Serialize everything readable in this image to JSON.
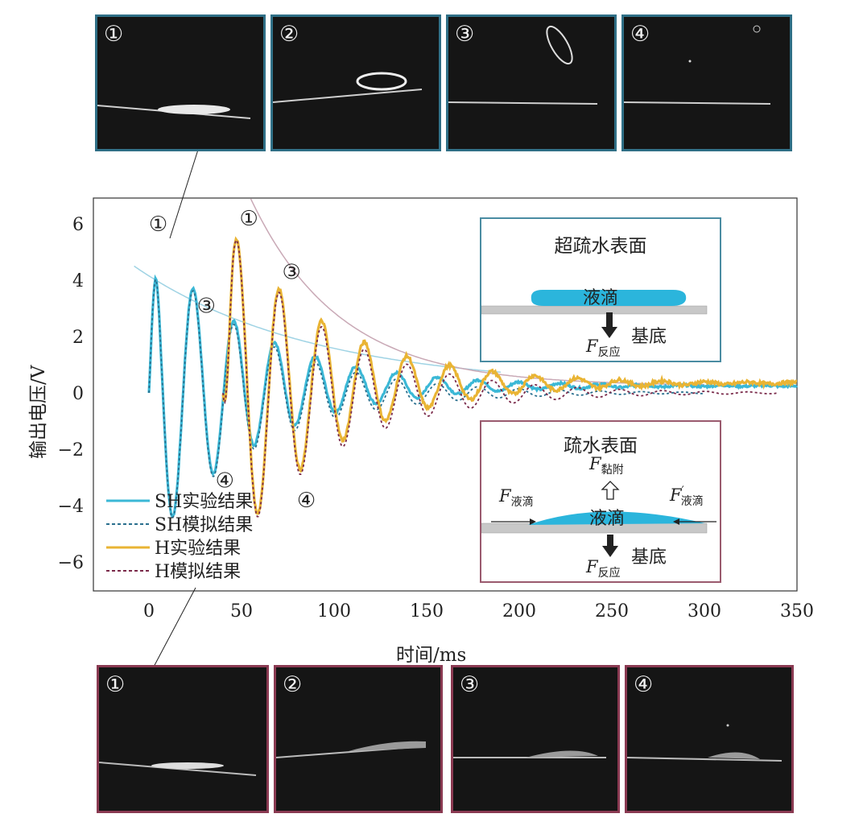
{
  "top_photos": [
    {
      "label": "①"
    },
    {
      "label": "②"
    },
    {
      "label": "③"
    },
    {
      "label": "④"
    }
  ],
  "bottom_photos": [
    {
      "label": "①"
    },
    {
      "label": "②"
    },
    {
      "label": "③"
    },
    {
      "label": "④"
    }
  ],
  "colors": {
    "sh_exp": "#3bb8d6",
    "sh_sim": "#2a6f8e",
    "h_exp": "#e9b434",
    "h_sim": "#7a2a4a",
    "envelope": "#c9a9b6",
    "sh_box": "#4a8ca2",
    "h_box": "#9a5a6e",
    "droplet": "#2bb5dc"
  },
  "chart_data": {
    "type": "line",
    "xlabel": "时间/ms",
    "ylabel": "输出电压/V",
    "xlim": [
      -30,
      350
    ],
    "ylim": [
      -7,
      7
    ],
    "x_ticks": [
      "0",
      "50",
      "100",
      "150",
      "200",
      "250",
      "300",
      "350"
    ],
    "y_ticks": [
      "6",
      "4",
      "2",
      "0",
      "−2",
      "−4",
      "−6"
    ],
    "legend": [
      "SH实验结果",
      "SH模拟结果",
      "H实验结果",
      "H模拟结果"
    ],
    "series": [
      {
        "name": "SH实验结果",
        "model": {
          "t0": 0,
          "t1": 350,
          "amp": 5.6,
          "tau": 55,
          "period": 22,
          "phase": 2,
          "offset": 0.25,
          "floor": 0.25,
          "noise": 0.08
        }
      },
      {
        "name": "SH模拟结果",
        "model": {
          "t0": 0,
          "t1": 300,
          "amp": 5.6,
          "tau": 55,
          "period": 22,
          "phase": 2,
          "offset": 0,
          "floor": 0,
          "noise": 0
        }
      },
      {
        "name": "H实验结果",
        "model": {
          "t0": 40,
          "t1": 350,
          "amp": 6.2,
          "tau": 55,
          "period": 23,
          "phase": 47.5,
          "offset": 0.35,
          "floor": 0.3,
          "noise": 0.12
        }
      },
      {
        "name": "H模拟结果",
        "model": {
          "t0": 40,
          "t1": 340,
          "amp": 6.2,
          "tau": 55,
          "period": 23,
          "phase": 47.5,
          "offset": 0,
          "floor": 0,
          "noise": 0
        }
      }
    ],
    "envelopes": [
      {
        "name": "SH",
        "model": {
          "t0": -8,
          "t1": 190,
          "a": 4.3,
          "tau": 95,
          "c": 0.2
        }
      },
      {
        "name": "H",
        "model": {
          "t0": 33,
          "t1": 300,
          "a": 10.5,
          "tau": 48,
          "c": 0.25
        }
      }
    ],
    "annotations": [
      {
        "text": "①",
        "x": 5,
        "y": 6.0
      },
      {
        "text": "③",
        "x": 31,
        "y": 3.1
      },
      {
        "text": "④",
        "x": 41,
        "y": -3.1
      },
      {
        "text": "①",
        "x": 54,
        "y": 6.2
      },
      {
        "text": "③",
        "x": 77,
        "y": 4.3
      },
      {
        "text": "④",
        "x": 85,
        "y": -3.8
      }
    ]
  },
  "inset_sh": {
    "title": "超疏水表面",
    "droplet_label": "液滴",
    "substrate_label": "基底",
    "force_reaction": {
      "base": "F",
      "sub": "反应"
    }
  },
  "inset_h": {
    "title": "疏水表面",
    "droplet_label": "液滴",
    "substrate_label": "基底",
    "force_adhesion": {
      "base": "F",
      "sub": "黏附"
    },
    "force_drop_left": {
      "base": "F",
      "sub": "液滴"
    },
    "force_drop_right": {
      "base": "F",
      "sup": "′",
      "sub": "液滴"
    },
    "force_reaction": {
      "base": "F",
      "sub": "反应"
    }
  }
}
